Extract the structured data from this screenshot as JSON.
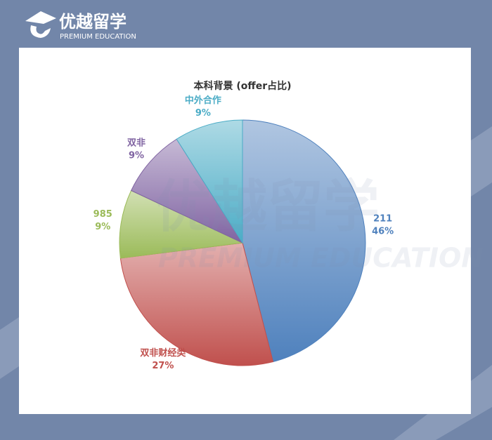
{
  "brand": {
    "name": "优越留学",
    "tagline": "PREMIUM EDUCATION"
  },
  "chart_data": {
    "type": "pie",
    "title": "本科背景 (offer占比)",
    "categories": [
      "211",
      "双非财经类",
      "985",
      "双非",
      "中外合作"
    ],
    "values": [
      46,
      27,
      9,
      9,
      9
    ],
    "value_labels": [
      "46%",
      "27%",
      "9%",
      "9%",
      "9%"
    ],
    "colors": [
      "#4f81bd",
      "#c0504d",
      "#9bbb59",
      "#8064a2",
      "#4bacc6"
    ]
  }
}
